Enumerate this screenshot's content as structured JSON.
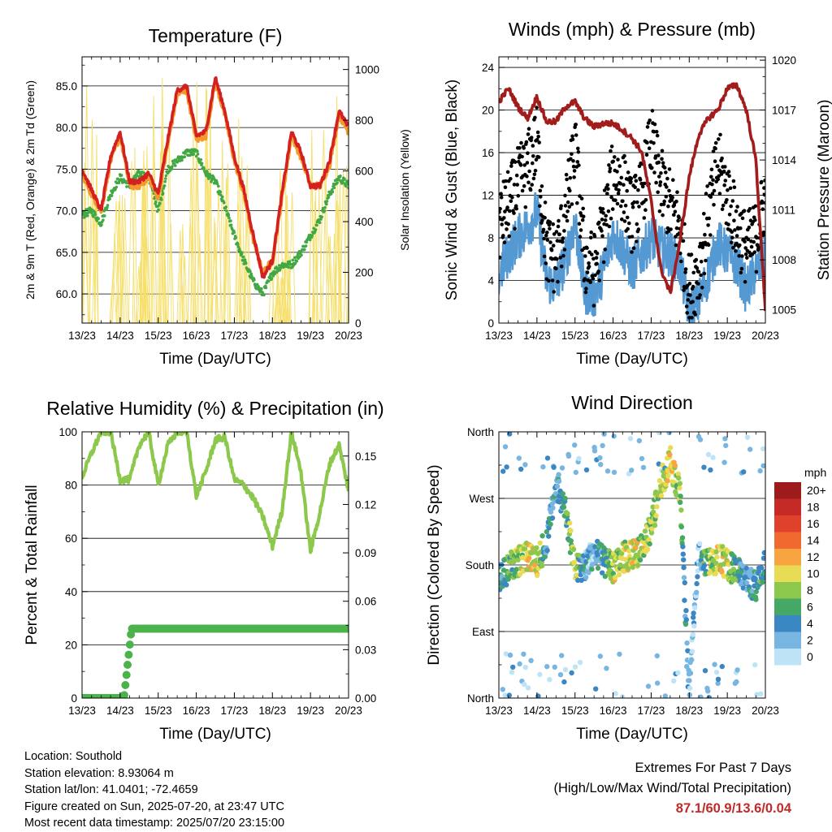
{
  "colors": {
    "temp2m": "#d42020",
    "temp9m": "#f39a2a",
    "dewpoint": "#41a843",
    "solar": "#f6df6a",
    "gust": "#000000",
    "wind": "#5599d3",
    "pressure": "#a31c1c",
    "rh": "#8cc84b",
    "precip": "#4ab34a",
    "extremes": "#c02a2a"
  },
  "x_ticks": [
    "13/23",
    "14/23",
    "15/23",
    "16/23",
    "17/23",
    "18/23",
    "19/23",
    "20/23"
  ],
  "temperature": {
    "title": "Temperature (F)",
    "xlabel": "Time (Day/UTC)",
    "ylabel_left": "2m & 9m T (Red, Orange) & 2m Td (Green)",
    "ylabel_right": "Solar Insolation (Yellow)",
    "left_ticks": [
      "60.0",
      "65.0",
      "70.0",
      "75.0",
      "80.0",
      "85.0"
    ],
    "right_ticks": [
      "0",
      "200",
      "400",
      "600",
      "800",
      "1000"
    ]
  },
  "winds": {
    "title": "Winds (mph) & Pressure (mb)",
    "xlabel": "Time (Day/UTC)",
    "ylabel_left": "Sonic Wind & Gust (Blue, Black)",
    "ylabel_right": "Station Pressure (Maroon)",
    "left_ticks": [
      "0",
      "4",
      "8",
      "12",
      "16",
      "20",
      "24"
    ],
    "right_ticks": [
      "1005",
      "1008",
      "1011",
      "1014",
      "1017",
      "1020"
    ]
  },
  "humidity": {
    "title": "Relative Humidity (%) & Precipitation (in)",
    "xlabel": "Time (Day/UTC)",
    "ylabel_left": "Percent & Total Rainfall",
    "left_ticks": [
      "0",
      "20",
      "40",
      "60",
      "80",
      "100"
    ],
    "right_ticks": [
      "0.00",
      "0.03",
      "0.06",
      "0.09",
      "0.12",
      "0.15"
    ]
  },
  "direction": {
    "title": "Wind Direction",
    "xlabel": "Time (Day/UTC)",
    "ylabel_left": "Direction (Colored By Speed)",
    "y_ticks": [
      "North",
      "East",
      "South",
      "West",
      "North"
    ],
    "legend_title": "mph",
    "legend_labels": [
      "20+",
      "18",
      "16",
      "14",
      "12",
      "10",
      "8",
      "6",
      "4",
      "2",
      "0"
    ],
    "legend_colors": [
      "#9e1b1b",
      "#c62a27",
      "#e0412d",
      "#f06a30",
      "#f8a440",
      "#e9dc55",
      "#8cc84b",
      "#45a867",
      "#3b87c4",
      "#78b6e2",
      "#bfe3f6"
    ]
  },
  "info": {
    "location": "Location: Southold",
    "elevation": "Station elevation: 8.93064 m",
    "latlon": "Station lat/lon: 41.0401; -72.4659",
    "created": "Figure created on Sun, 2025-07-20, at 23:47 UTC",
    "latest": "Most recent data timestamp: 2025/07/20 23:15:00"
  },
  "extremes": {
    "line1": "Extremes For Past 7 Days",
    "line2": "(High/Low/Max Wind/Total Precipitation)",
    "values": "87.1/60.9/13.6/0.04"
  },
  "chart_data": [
    {
      "type": "line",
      "title": "Temperature (F)",
      "xlabel": "Time (Day/UTC)",
      "ylabel": "2m & 9m T (Red, Orange) & 2m Td (Green)",
      "y2label": "Solar Insolation (Yellow)",
      "x": [
        0,
        0.25,
        0.5,
        0.75,
        1,
        1.25,
        1.5,
        1.75,
        2,
        2.25,
        2.5,
        2.75,
        3,
        3.25,
        3.5,
        3.75,
        4,
        4.25,
        4.5,
        4.75,
        5,
        5.25,
        5.5,
        5.75,
        6,
        6.25,
        6.5,
        6.75,
        7
      ],
      "x_unit": "days since 13/23 UTC",
      "ylim": [
        56.5,
        88.5
      ],
      "y2lim": [
        0,
        1050
      ],
      "series": [
        {
          "name": "2m T",
          "values": [
            75.0,
            72.5,
            70.0,
            76.5,
            79.5,
            73.5,
            73.5,
            74.5,
            72.0,
            78.5,
            84.5,
            85.0,
            79.0,
            79.5,
            86.0,
            82.0,
            76.5,
            72.5,
            67.0,
            62.0,
            64.0,
            72.0,
            79.5,
            77.0,
            73.0,
            73.0,
            76.0,
            82.0,
            80.0
          ]
        },
        {
          "name": "9m T",
          "values": [
            74.5,
            72.0,
            70.0,
            76.0,
            79.0,
            73.0,
            73.0,
            74.0,
            71.5,
            78.0,
            84.0,
            84.5,
            78.5,
            79.0,
            85.5,
            81.5,
            76.0,
            72.0,
            66.5,
            62.5,
            64.0,
            71.5,
            79.0,
            76.5,
            73.0,
            73.0,
            75.5,
            81.5,
            79.5
          ]
        },
        {
          "name": "2m Td",
          "values": [
            69.5,
            70.0,
            68.5,
            72.0,
            74.0,
            73.0,
            74.5,
            74.0,
            70.0,
            75.0,
            76.0,
            77.0,
            77.0,
            74.5,
            73.5,
            70.5,
            67.0,
            64.0,
            61.5,
            60.0,
            62.5,
            63.5,
            63.5,
            65.0,
            67.0,
            69.0,
            72.0,
            74.0,
            73.0
          ]
        },
        {
          "name": "Solar Insolation",
          "axis": "y2",
          "values": [
            0,
            1000,
            0,
            600,
            0,
            700,
            0,
            900,
            0,
            1000,
            0,
            900,
            0,
            1000,
            0,
            900,
            0,
            0,
            0,
            0,
            300,
            0,
            0,
            0,
            0,
            900,
            0,
            1000,
            0
          ]
        }
      ]
    },
    {
      "type": "line",
      "title": "Winds (mph) & Pressure (mb)",
      "xlabel": "Time (Day/UTC)",
      "ylabel": "Sonic Wind & Gust (Blue, Black)",
      "y2label": "Station Pressure (Maroon)",
      "x": [
        0,
        0.25,
        0.5,
        0.75,
        1,
        1.25,
        1.5,
        1.75,
        2,
        2.25,
        2.5,
        2.75,
        3,
        3.25,
        3.5,
        3.75,
        4,
        4.25,
        4.5,
        4.75,
        5,
        5.25,
        5.5,
        5.75,
        6,
        6.25,
        6.5,
        6.75,
        7
      ],
      "x_unit": "days since 13/23 UTC",
      "ylim": [
        0,
        25
      ],
      "y2lim": [
        1004.2,
        1020.2
      ],
      "series": [
        {
          "name": "Sonic Wind",
          "values": [
            4.5,
            6.5,
            8.0,
            9.0,
            10.5,
            4.0,
            3.5,
            6.0,
            9.5,
            3.0,
            2.5,
            5.0,
            8.5,
            7.0,
            5.0,
            6.5,
            8.0,
            7.0,
            6.5,
            5.5,
            1.0,
            2.0,
            4.5,
            7.5,
            6.5,
            5.5,
            3.0,
            5.0,
            6.0
          ]
        },
        {
          "name": "Gust",
          "values": [
            9.0,
            11.0,
            13.0,
            14.5,
            17.0,
            7.0,
            6.0,
            10.0,
            16.5,
            6.0,
            5.0,
            9.0,
            14.0,
            13.0,
            10.0,
            12.0,
            17.0,
            13.0,
            11.0,
            9.0,
            3.0,
            5.0,
            10.0,
            15.0,
            12.0,
            9.0,
            7.0,
            8.0,
            12.0
          ]
        },
        {
          "name": "Station Pressure",
          "axis": "y2",
          "values": [
            1017.5,
            1018.3,
            1017.2,
            1016.5,
            1017.8,
            1016.3,
            1016.3,
            1017.2,
            1017.5,
            1016.5,
            1016.0,
            1016.2,
            1016.2,
            1015.8,
            1015.3,
            1014.5,
            1011.5,
            1007.5,
            1006.0,
            1009.0,
            1013.0,
            1015.5,
            1016.5,
            1017.0,
            1018.3,
            1018.5,
            1017.0,
            1014.0,
            1005.0
          ]
        }
      ]
    },
    {
      "type": "line",
      "title": "Relative Humidity (%) & Precipitation (in)",
      "xlabel": "Time (Day/UTC)",
      "ylabel": "Percent & Total Rainfall",
      "x": [
        0,
        0.25,
        0.5,
        0.75,
        1,
        1.25,
        1.5,
        1.75,
        2,
        2.25,
        2.5,
        2.75,
        3,
        3.25,
        3.5,
        3.75,
        4,
        4.25,
        4.5,
        4.75,
        5,
        5.25,
        5.5,
        5.75,
        6,
        6.25,
        6.5,
        6.75,
        7
      ],
      "x_unit": "days since 13/23 UTC",
      "ylim": [
        0,
        100
      ],
      "y2lim": [
        0,
        0.165
      ],
      "series": [
        {
          "name": "Relative Humidity",
          "values": [
            83,
            92,
            100,
            100,
            82,
            82,
            95,
            100,
            80,
            95,
            100,
            100,
            76,
            85,
            97,
            98,
            82,
            80,
            75,
            68,
            57,
            70,
            100,
            85,
            55,
            70,
            88,
            95,
            78
          ]
        },
        {
          "name": "Total Precipitation",
          "axis": "y2",
          "values": [
            0,
            0,
            0,
            0,
            0,
            0.043,
            0.043,
            0.043,
            0.043,
            0.043,
            0.043,
            0.043,
            0.043,
            0.043,
            0.043,
            0.043,
            0.043,
            0.043,
            0.043,
            0.043,
            0.043,
            0.043,
            0.043,
            0.043,
            0.043,
            0.043,
            0.043,
            0.043,
            0.043
          ]
        }
      ]
    },
    {
      "type": "scatter",
      "title": "Wind Direction",
      "xlabel": "Time (Day/UTC)",
      "ylabel": "Direction (Colored By Speed)",
      "x": [
        0,
        0.25,
        0.5,
        0.75,
        1,
        1.25,
        1.5,
        1.75,
        2,
        2.25,
        2.5,
        2.75,
        3,
        3.25,
        3.5,
        3.75,
        4,
        4.25,
        4.5,
        4.75,
        5,
        5.25,
        5.5,
        5.75,
        6,
        6.25,
        6.5,
        6.75,
        7
      ],
      "x_unit": "days since 13/23 UTC",
      "y_unit": "degrees (0 = North, 90 = East, 180 = South, 270 = West, 360 = North)",
      "ylim": [
        0,
        360
      ],
      "series": [
        {
          "name": "Wind Direction",
          "values": [
            165,
            175,
            185,
            190,
            185,
            210,
            290,
            250,
            180,
            175,
            200,
            185,
            175,
            190,
            195,
            200,
            230,
            290,
            320,
            280,
            10,
            200,
            180,
            190,
            180,
            170,
            160,
            150,
            180
          ]
        },
        {
          "name": "Speed (mph)",
          "values": [
            4,
            6,
            8,
            10,
            10,
            4,
            3,
            5,
            9,
            3,
            3,
            5,
            9,
            9,
            10,
            9,
            8,
            10,
            10,
            8,
            1,
            2,
            8,
            9,
            9,
            6,
            3,
            4,
            6
          ]
        }
      ]
    }
  ]
}
